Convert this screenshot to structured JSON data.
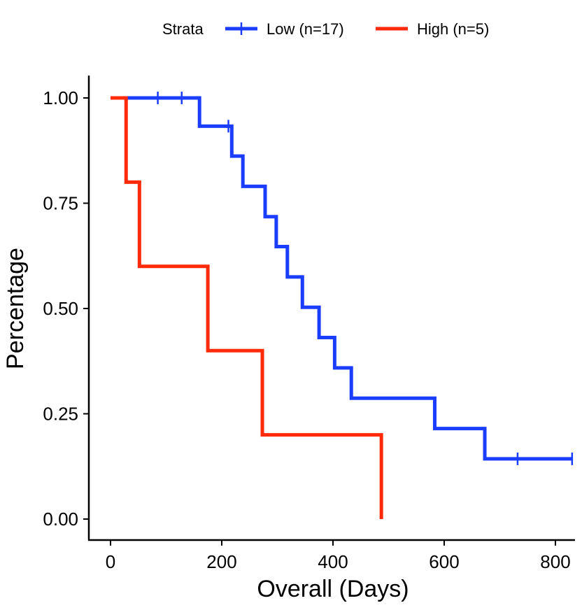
{
  "chart_data": {
    "type": "line",
    "subtype": "kaplan-meier-step",
    "xlabel": "Overall (Days)",
    "ylabel": "Percentage",
    "xlim": [
      -48,
      835
    ],
    "ylim": [
      -0.05,
      1.05
    ],
    "xticks": [
      0,
      200,
      400,
      600,
      800
    ],
    "xtick_labels": [
      "0",
      "200",
      "400",
      "600",
      "800"
    ],
    "yticks": [
      0,
      0.25,
      0.5,
      0.75,
      1.0
    ],
    "ytick_labels": [
      "0.00",
      "0.25",
      "0.50",
      "0.75",
      "1.00"
    ],
    "grid": false,
    "legend": {
      "position": "top",
      "title": "Strata",
      "entries": [
        "Low (n=17)",
        "High (n=5)"
      ]
    },
    "series": [
      {
        "name": "Low (n=17)",
        "color": "#1a3dff",
        "steps": [
          [
            0,
            1.0
          ],
          [
            160,
            0.933
          ],
          [
            218,
            0.862
          ],
          [
            238,
            0.79
          ],
          [
            278,
            0.718
          ],
          [
            298,
            0.647
          ],
          [
            318,
            0.575
          ],
          [
            345,
            0.503
          ],
          [
            375,
            0.431
          ],
          [
            403,
            0.359
          ],
          [
            433,
            0.287
          ],
          [
            583,
            0.215
          ],
          [
            673,
            0.143
          ]
        ],
        "end_x": 830,
        "censored": [
          [
            85,
            1.0
          ],
          [
            128,
            1.0
          ],
          [
            212,
            0.933
          ],
          [
            732,
            0.143
          ],
          [
            830,
            0.143
          ]
        ]
      },
      {
        "name": "High (n=5)",
        "color": "#ff2a0a",
        "steps": [
          [
            0,
            1.0
          ],
          [
            28,
            0.8
          ],
          [
            52,
            0.6
          ],
          [
            175,
            0.4
          ],
          [
            273,
            0.2
          ],
          [
            487,
            0.0
          ]
        ],
        "end_x": 487,
        "censored": []
      }
    ]
  }
}
